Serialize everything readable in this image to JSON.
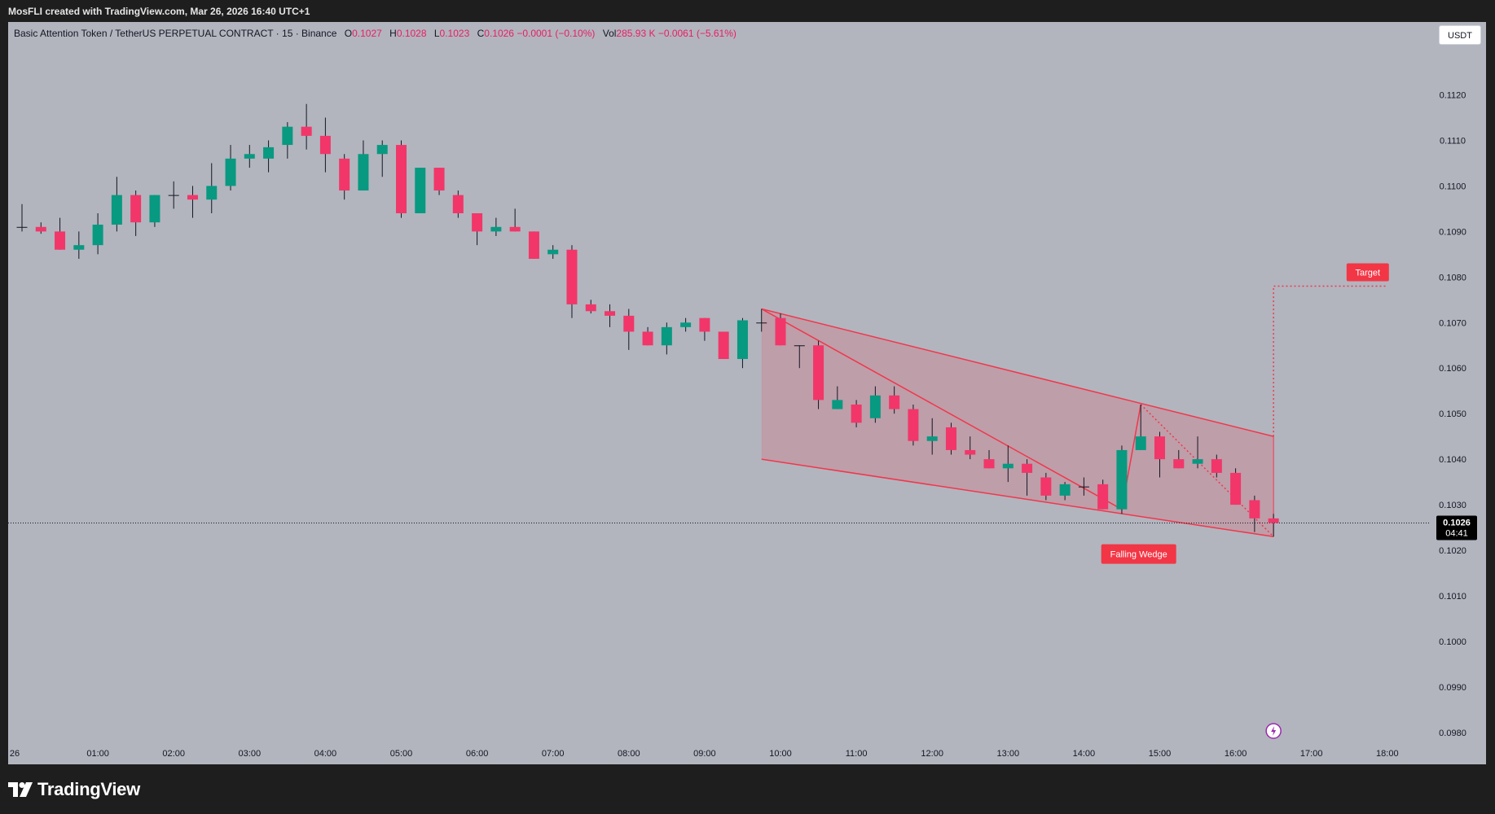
{
  "header": {
    "attribution": "MosFLI created with TradingView.com, Mar 26, 2026 16:40 UTC+1"
  },
  "legend": {
    "symbol": "Basic Attention Token / TetherUS PERPETUAL CONTRACT · 15 · Binance",
    "o_label": "O",
    "o_value": "0.1027",
    "h_label": "H",
    "h_value": "0.1028",
    "l_label": "L",
    "l_value": "0.1023",
    "c_label": "C",
    "c_value": "0.1026",
    "change": "−0.0001 (−0.10%)",
    "vol_label": "Vol",
    "vol_value": "285.93 K",
    "vol_change": "−0.0061 (−5.61%)"
  },
  "currency_button": "USDT",
  "price_badge": {
    "price": "0.1026",
    "countdown": "04:41"
  },
  "annotations": {
    "pattern_label": "Falling Wedge",
    "target_label": "Target"
  },
  "brand": {
    "name": "TradingView"
  },
  "colors": {
    "background": "#b2b5be",
    "up": "#089981",
    "down": "#f23669",
    "pattern_line": "#f2364c",
    "pattern_fill": "#f2364c",
    "label_bg": "#f23645"
  },
  "chart_data": {
    "type": "candlestick",
    "title": "",
    "xlabel": "",
    "ylabel": "",
    "grid": false,
    "x_ticks": [
      "26",
      "01:00",
      "02:00",
      "03:00",
      "04:00",
      "05:00",
      "06:00",
      "07:00",
      "08:00",
      "09:00",
      "10:00",
      "11:00",
      "12:00",
      "13:00",
      "14:00",
      "15:00",
      "16:00",
      "17:00",
      "18:00"
    ],
    "y_ticks": [
      "0.1120",
      "0.1110",
      "0.1100",
      "0.1090",
      "0.1080",
      "0.1070",
      "0.1060",
      "0.1050",
      "0.1040",
      "0.1030",
      "0.1020",
      "0.1010",
      "0.1000",
      "0.0990",
      "0.0980"
    ],
    "ylim": [
      0.0973,
      0.1136
    ],
    "candles": [
      {
        "t": "00:00",
        "o": 0.1091,
        "h": 0.1096,
        "l": 0.109,
        "c": 0.1091
      },
      {
        "t": "00:15",
        "o": 0.1091,
        "h": 0.1092,
        "l": 0.10895,
        "c": 0.109
      },
      {
        "t": "00:30",
        "o": 0.109,
        "h": 0.1093,
        "l": 0.1086,
        "c": 0.1086
      },
      {
        "t": "00:45",
        "o": 0.1086,
        "h": 0.109,
        "l": 0.1084,
        "c": 0.1087
      },
      {
        "t": "01:00",
        "o": 0.1087,
        "h": 0.1094,
        "l": 0.1085,
        "c": 0.10915
      },
      {
        "t": "01:15",
        "o": 0.10915,
        "h": 0.1102,
        "l": 0.109,
        "c": 0.1098
      },
      {
        "t": "01:30",
        "o": 0.1098,
        "h": 0.1099,
        "l": 0.1089,
        "c": 0.1092
      },
      {
        "t": "01:45",
        "o": 0.1092,
        "h": 0.1098,
        "l": 0.1091,
        "c": 0.1098
      },
      {
        "t": "02:00",
        "o": 0.1098,
        "h": 0.1101,
        "l": 0.1095,
        "c": 0.1098
      },
      {
        "t": "02:15",
        "o": 0.1098,
        "h": 0.11,
        "l": 0.1093,
        "c": 0.1097
      },
      {
        "t": "02:30",
        "o": 0.1097,
        "h": 0.1105,
        "l": 0.1094,
        "c": 0.11
      },
      {
        "t": "02:45",
        "o": 0.11,
        "h": 0.1109,
        "l": 0.1099,
        "c": 0.1106
      },
      {
        "t": "03:00",
        "o": 0.1106,
        "h": 0.1109,
        "l": 0.1104,
        "c": 0.1107
      },
      {
        "t": "03:15",
        "o": 0.1106,
        "h": 0.111,
        "l": 0.1103,
        "c": 0.11085
      },
      {
        "t": "03:30",
        "o": 0.1109,
        "h": 0.1114,
        "l": 0.1106,
        "c": 0.1113
      },
      {
        "t": "03:45",
        "o": 0.1113,
        "h": 0.1118,
        "l": 0.1108,
        "c": 0.1111
      },
      {
        "t": "04:00",
        "o": 0.1111,
        "h": 0.1115,
        "l": 0.1103,
        "c": 0.1107
      },
      {
        "t": "04:15",
        "o": 0.1106,
        "h": 0.1107,
        "l": 0.1097,
        "c": 0.1099
      },
      {
        "t": "04:30",
        "o": 0.1099,
        "h": 0.111,
        "l": 0.1099,
        "c": 0.1107
      },
      {
        "t": "04:45",
        "o": 0.1107,
        "h": 0.111,
        "l": 0.1102,
        "c": 0.1109
      },
      {
        "t": "05:00",
        "o": 0.1109,
        "h": 0.111,
        "l": 0.1093,
        "c": 0.1094
      },
      {
        "t": "05:15",
        "o": 0.1094,
        "h": 0.1104,
        "l": 0.1094,
        "c": 0.1104
      },
      {
        "t": "05:30",
        "o": 0.1104,
        "h": 0.1104,
        "l": 0.1098,
        "c": 0.1099
      },
      {
        "t": "05:45",
        "o": 0.1098,
        "h": 0.1099,
        "l": 0.1093,
        "c": 0.1094
      },
      {
        "t": "06:00",
        "o": 0.1094,
        "h": 0.1094,
        "l": 0.1087,
        "c": 0.109
      },
      {
        "t": "06:15",
        "o": 0.109,
        "h": 0.1093,
        "l": 0.1089,
        "c": 0.1091
      },
      {
        "t": "06:30",
        "o": 0.1091,
        "h": 0.1095,
        "l": 0.109,
        "c": 0.109
      },
      {
        "t": "06:45",
        "o": 0.109,
        "h": 0.109,
        "l": 0.1084,
        "c": 0.1084
      },
      {
        "t": "07:00",
        "o": 0.1085,
        "h": 0.1087,
        "l": 0.1084,
        "c": 0.1086
      },
      {
        "t": "07:15",
        "o": 0.1086,
        "h": 0.1087,
        "l": 0.1071,
        "c": 0.1074
      },
      {
        "t": "07:30",
        "o": 0.1074,
        "h": 0.1075,
        "l": 0.1072,
        "c": 0.10725
      },
      {
        "t": "07:45",
        "o": 0.10725,
        "h": 0.1074,
        "l": 0.1069,
        "c": 0.10715
      },
      {
        "t": "08:00",
        "o": 0.10715,
        "h": 0.1073,
        "l": 0.1064,
        "c": 0.1068
      },
      {
        "t": "08:15",
        "o": 0.1068,
        "h": 0.1069,
        "l": 0.1065,
        "c": 0.1065
      },
      {
        "t": "08:30",
        "o": 0.1065,
        "h": 0.107,
        "l": 0.1063,
        "c": 0.1069
      },
      {
        "t": "08:45",
        "o": 0.1069,
        "h": 0.1071,
        "l": 0.1068,
        "c": 0.107
      },
      {
        "t": "09:00",
        "o": 0.1071,
        "h": 0.1071,
        "l": 0.1066,
        "c": 0.1068
      },
      {
        "t": "09:15",
        "o": 0.1068,
        "h": 0.1068,
        "l": 0.1062,
        "c": 0.1062
      },
      {
        "t": "09:30",
        "o": 0.1062,
        "h": 0.1071,
        "l": 0.106,
        "c": 0.10705
      },
      {
        "t": "09:45",
        "o": 0.107,
        "h": 0.1073,
        "l": 0.1068,
        "c": 0.107
      },
      {
        "t": "10:00",
        "o": 0.1071,
        "h": 0.1072,
        "l": 0.1065,
        "c": 0.1065
      },
      {
        "t": "10:15",
        "o": 0.1065,
        "h": 0.1065,
        "l": 0.106,
        "c": 0.1065
      },
      {
        "t": "10:30",
        "o": 0.1065,
        "h": 0.1066,
        "l": 0.1051,
        "c": 0.1053
      },
      {
        "t": "10:45",
        "o": 0.1051,
        "h": 0.1056,
        "l": 0.1051,
        "c": 0.1053
      },
      {
        "t": "11:00",
        "o": 0.1052,
        "h": 0.1053,
        "l": 0.1047,
        "c": 0.1048
      },
      {
        "t": "11:15",
        "o": 0.1049,
        "h": 0.1056,
        "l": 0.1048,
        "c": 0.1054
      },
      {
        "t": "11:30",
        "o": 0.1054,
        "h": 0.1056,
        "l": 0.105,
        "c": 0.1051
      },
      {
        "t": "11:45",
        "o": 0.1051,
        "h": 0.1052,
        "l": 0.1043,
        "c": 0.1044
      },
      {
        "t": "12:00",
        "o": 0.1044,
        "h": 0.1049,
        "l": 0.1041,
        "c": 0.1045
      },
      {
        "t": "12:15",
        "o": 0.1047,
        "h": 0.1048,
        "l": 0.1041,
        "c": 0.1042
      },
      {
        "t": "12:30",
        "o": 0.1042,
        "h": 0.1045,
        "l": 0.104,
        "c": 0.1041
      },
      {
        "t": "12:45",
        "o": 0.104,
        "h": 0.1042,
        "l": 0.1038,
        "c": 0.1038
      },
      {
        "t": "13:00",
        "o": 0.1038,
        "h": 0.1043,
        "l": 0.1035,
        "c": 0.1039
      },
      {
        "t": "13:15",
        "o": 0.1039,
        "h": 0.104,
        "l": 0.1032,
        "c": 0.1037
      },
      {
        "t": "13:30",
        "o": 0.1036,
        "h": 0.1037,
        "l": 0.1031,
        "c": 0.1032
      },
      {
        "t": "13:45",
        "o": 0.1032,
        "h": 0.1035,
        "l": 0.1031,
        "c": 0.10345
      },
      {
        "t": "14:00",
        "o": 0.1034,
        "h": 0.1036,
        "l": 0.1032,
        "c": 0.1034
      },
      {
        "t": "14:15",
        "o": 0.10345,
        "h": 0.10355,
        "l": 0.1029,
        "c": 0.1029
      },
      {
        "t": "14:30",
        "o": 0.1029,
        "h": 0.1043,
        "l": 0.1028,
        "c": 0.1042
      },
      {
        "t": "14:45",
        "o": 0.1042,
        "h": 0.1052,
        "l": 0.1042,
        "c": 0.1045
      },
      {
        "t": "15:00",
        "o": 0.1045,
        "h": 0.1046,
        "l": 0.1036,
        "c": 0.104
      },
      {
        "t": "15:15",
        "o": 0.104,
        "h": 0.1042,
        "l": 0.1038,
        "c": 0.1038
      },
      {
        "t": "15:30",
        "o": 0.1039,
        "h": 0.1045,
        "l": 0.1038,
        "c": 0.104
      },
      {
        "t": "15:45",
        "o": 0.104,
        "h": 0.1041,
        "l": 0.1036,
        "c": 0.1037
      },
      {
        "t": "16:00",
        "o": 0.1037,
        "h": 0.1038,
        "l": 0.103,
        "c": 0.103
      },
      {
        "t": "16:15",
        "o": 0.1031,
        "h": 0.1032,
        "l": 0.1024,
        "c": 0.1027
      },
      {
        "t": "16:30",
        "o": 0.1027,
        "h": 0.1028,
        "l": 0.1023,
        "c": 0.1026
      }
    ],
    "current_price": 0.1026,
    "falling_wedge": {
      "label": "Falling Wedge",
      "upper_line": [
        {
          "t": "09:45",
          "price": 0.1073
        },
        {
          "t": "16:30",
          "price": 0.1045
        }
      ],
      "lower_line": [
        {
          "t": "09:45",
          "price": 0.104
        },
        {
          "t": "16:30",
          "price": 0.1023
        }
      ],
      "inner_path": [
        {
          "t": "09:45",
          "price": 0.1073
        },
        {
          "t": "14:30",
          "price": 0.1029
        },
        {
          "t": "14:45",
          "price": 0.1052
        },
        {
          "t": "16:30",
          "price": 0.1023
        }
      ]
    },
    "target": {
      "label": "Target",
      "path": [
        {
          "t": "16:30",
          "price": 0.1045
        },
        {
          "t": "16:30",
          "price": 0.1078
        },
        {
          "t": "18:00",
          "price": 0.1078
        }
      ]
    }
  }
}
